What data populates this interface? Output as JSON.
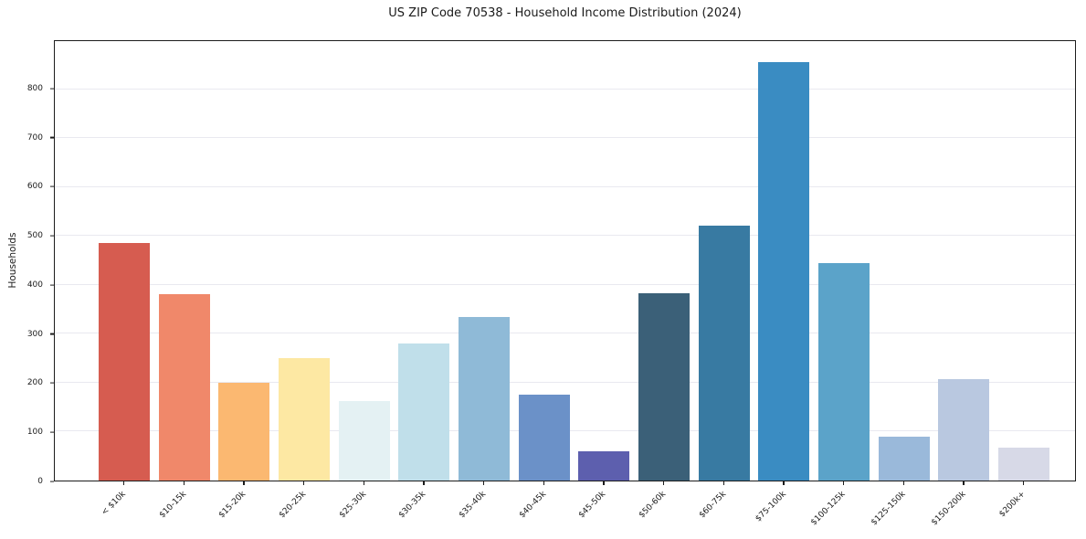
{
  "chart_data": {
    "type": "bar",
    "title": "US ZIP Code 70538 - Household Income Distribution (2024)",
    "xlabel": "",
    "ylabel": "Households",
    "categories": [
      "< $10k",
      "$10-15k",
      "$15-20k",
      "$20-25k",
      "$25-30k",
      "$30-35k",
      "$35-40k",
      "$40-45k",
      "$45-50k",
      "$50-60k",
      "$60-75k",
      "$75-100k",
      "$100-125k",
      "$125-150k",
      "$150-200k",
      "$200k+"
    ],
    "values": [
      485,
      380,
      200,
      250,
      163,
      280,
      335,
      175,
      60,
      383,
      520,
      855,
      445,
      90,
      207,
      68
    ],
    "bar_colors": [
      "#d65c50",
      "#f0886a",
      "#fbb871",
      "#fde8a3",
      "#e4f1f3",
      "#c0dfea",
      "#8fbad7",
      "#6b91c8",
      "#5d5fae",
      "#3b6078",
      "#387aa2",
      "#3a8cc2",
      "#5ba3c9",
      "#9ab9da",
      "#b9c8e0",
      "#d7d9e7"
    ],
    "yticks": [
      0,
      100,
      200,
      300,
      400,
      500,
      600,
      700,
      800
    ],
    "ylim": [
      0,
      898
    ],
    "grid": "horizontal",
    "legend": null
  },
  "style": {
    "background": "#ffffff",
    "grid_color": "#e9e9f0",
    "spine_color": "#1c1c1c",
    "text_color": "#1a1a1a"
  }
}
